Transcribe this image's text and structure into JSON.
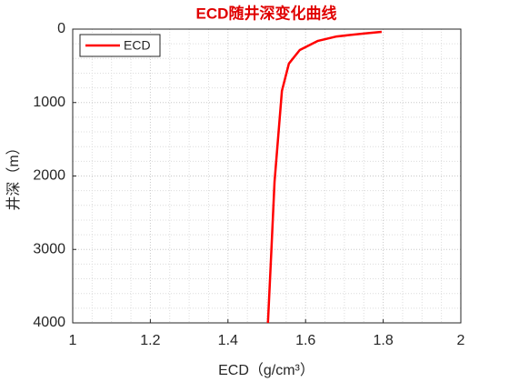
{
  "chart_data": {
    "type": "line",
    "title": "ECD随井深变化曲线",
    "xlabel": "ECD（g/cm³）",
    "ylabel": "井深（m）",
    "x": [
      1.796,
      1.75,
      1.68,
      1.632,
      1.585,
      1.557,
      1.539,
      1.52,
      1.512,
      1.503
    ],
    "series": [
      {
        "name": "ECD",
        "color": "#ff0000",
        "values": [
          37,
          60,
          100,
          160,
          285,
          470,
          842,
          2080,
          3000,
          4000
        ]
      }
    ],
    "xlim": [
      1,
      2
    ],
    "xticks": [
      1,
      1.2,
      1.4,
      1.6,
      1.8,
      2
    ],
    "ylim": [
      0,
      4000
    ],
    "yticks": [
      0,
      1000,
      2000,
      3000,
      4000
    ],
    "y_reversed": true,
    "grid": true,
    "minor_grid": true,
    "legend": "upper-left",
    "title_color": "#e00000"
  }
}
